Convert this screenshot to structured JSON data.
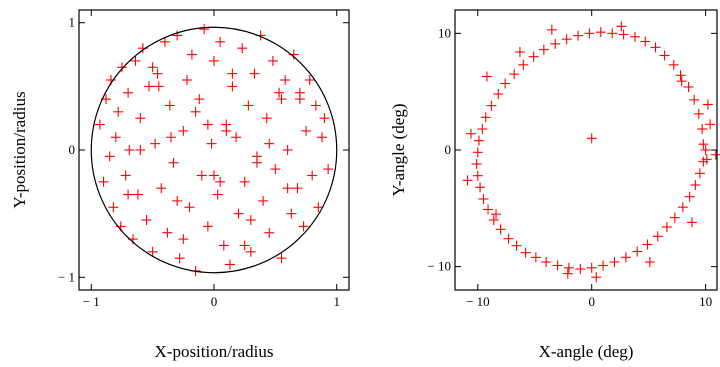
{
  "chart_data": [
    {
      "type": "scatter",
      "xlabel": "X-position/radius",
      "ylabel": "Y-position/radius",
      "xlim": [
        -1.1,
        1.1
      ],
      "ylim": [
        -1.1,
        1.1
      ],
      "xticks": [
        -1,
        0,
        1
      ],
      "xtick_labels": [
        "− 1",
        "0",
        "1"
      ],
      "yticks": [
        -1,
        0,
        1
      ],
      "ytick_labels": [
        "− 1",
        "0",
        "1"
      ],
      "grid": false,
      "marker": "+",
      "marker_color": "#ff0000",
      "boundary": {
        "shape": "circle",
        "radius": 1,
        "color": "#000000"
      },
      "series": [
        {
          "x": [
            -0.93,
            -0.9,
            -0.88,
            -0.85,
            -0.84,
            -0.82,
            -0.8,
            -0.78,
            -0.76,
            -0.75,
            -0.72,
            -0.7,
            -0.69,
            -0.66,
            -0.64,
            -0.62,
            -0.6,
            -0.58,
            -0.55,
            -0.53,
            -0.5,
            -0.48,
            -0.46,
            -0.43,
            -0.4,
            -0.38,
            -0.36,
            -0.33,
            -0.3,
            -0.28,
            -0.25,
            -0.22,
            -0.2,
            -0.18,
            -0.15,
            -0.12,
            -0.1,
            -0.08,
            -0.05,
            -0.02,
            0.0,
            0.03,
            0.05,
            0.08,
            0.1,
            0.13,
            0.15,
            0.18,
            0.2,
            0.23,
            0.25,
            0.28,
            0.3,
            0.33,
            0.35,
            0.38,
            0.4,
            0.43,
            0.45,
            0.48,
            0.5,
            0.53,
            0.55,
            0.58,
            0.6,
            0.63,
            0.65,
            0.68,
            0.7,
            0.73,
            0.75,
            0.78,
            0.8,
            0.83,
            0.85,
            0.88,
            0.9,
            0.93,
            -0.6,
            -0.45,
            -0.3,
            -0.15,
            0.0,
            0.15,
            0.3,
            0.45,
            0.6,
            -0.5,
            -0.25,
            0.1,
            0.35,
            0.55,
            -0.7,
            -0.05,
            0.25,
            0.7,
            -0.35,
            0.05
          ],
          "y": [
            0.2,
            -0.25,
            0.4,
            -0.05,
            0.55,
            -0.45,
            0.1,
            0.3,
            -0.6,
            0.65,
            -0.2,
            0.45,
            0.0,
            -0.7,
            0.7,
            -0.35,
            0.25,
            0.8,
            -0.55,
            0.5,
            -0.8,
            0.05,
            0.6,
            -0.3,
            0.85,
            -0.65,
            0.35,
            -0.1,
            0.9,
            -0.85,
            0.15,
            0.55,
            -0.45,
            0.75,
            -0.95,
            0.4,
            -0.2,
            0.95,
            -0.6,
            0.05,
            0.7,
            -0.35,
            0.85,
            -0.75,
            0.2,
            -0.9,
            0.5,
            0.1,
            -0.5,
            0.8,
            -0.25,
            0.35,
            -0.8,
            0.6,
            -0.05,
            0.9,
            -0.4,
            0.25,
            -0.65,
            0.7,
            -0.15,
            0.45,
            -0.85,
            0.55,
            0.0,
            -0.5,
            0.75,
            -0.3,
            0.4,
            -0.6,
            0.15,
            0.55,
            -0.2,
            0.35,
            -0.45,
            0.1,
            0.25,
            -0.15,
            0.0,
            0.5,
            -0.4,
            0.3,
            -0.2,
            0.6,
            -0.55,
            0.05,
            -0.3,
            0.65,
            -0.7,
            0.15,
            -0.1,
            0.4,
            -0.35,
            0.2,
            -0.75,
            0.45,
            0.1,
            -0.25
          ]
        }
      ]
    },
    {
      "type": "scatter",
      "xlabel": "X-angle (deg)",
      "ylabel": "Y-angle (deg)",
      "xlim": [
        -12,
        11
      ],
      "ylim": [
        -12,
        12
      ],
      "xticks": [
        -10,
        0,
        10
      ],
      "xtick_labels": [
        "− 10",
        "0",
        "10"
      ],
      "yticks": [
        -10,
        0,
        10
      ],
      "ytick_labels": [
        "− 10",
        "0",
        "10"
      ],
      "grid": false,
      "marker": "+",
      "marker_color": "#ff0000",
      "series": [
        {
          "x": [
            9.8,
            9.7,
            9.4,
            9.0,
            8.5,
            7.8,
            7.2,
            6.4,
            5.6,
            4.7,
            3.8,
            2.8,
            1.8,
            0.8,
            -0.2,
            -1.2,
            -2.2,
            -3.2,
            -4.2,
            -5.1,
            -6.0,
            -6.8,
            -7.6,
            -8.2,
            -8.8,
            -9.3,
            -9.6,
            -9.9,
            -10.0,
            -10.1,
            -10.0,
            -9.8,
            -9.5,
            -9.1,
            -8.6,
            -8.0,
            -7.3,
            -6.6,
            -5.8,
            -4.9,
            -4.0,
            -3.0,
            -2.0,
            -1.0,
            0.0,
            1.0,
            2.0,
            3.0,
            4.0,
            4.9,
            5.8,
            6.6,
            7.3,
            8.0,
            8.6,
            9.1,
            9.5,
            9.8,
            10.0,
            10.1,
            10.4,
            10.9,
            8.8,
            -10.6,
            -10.9,
            -9.2,
            0.4,
            -6.3,
            5.1,
            -3.5,
            2.6,
            -8.4,
            7.9,
            0.0,
            10.2,
            -2.1
          ],
          "y": [
            0.5,
            1.8,
            3.1,
            4.3,
            5.4,
            6.4,
            7.3,
            8.1,
            8.8,
            9.3,
            9.7,
            9.9,
            10.0,
            10.1,
            10.0,
            9.8,
            9.5,
            9.1,
            8.6,
            8.0,
            7.3,
            6.5,
            5.7,
            4.8,
            3.8,
            2.8,
            1.8,
            0.8,
            -0.2,
            -1.2,
            -2.2,
            -3.2,
            -4.2,
            -5.1,
            -6.0,
            -6.8,
            -7.6,
            -8.2,
            -8.8,
            -9.2,
            -9.6,
            -9.9,
            -10.1,
            -10.2,
            -10.1,
            -9.9,
            -9.6,
            -9.2,
            -8.7,
            -8.1,
            -7.4,
            -6.6,
            -5.8,
            -4.9,
            -4.0,
            -3.0,
            -2.0,
            -1.0,
            0.0,
            -0.8,
            2.2,
            -0.4,
            -6.2,
            1.4,
            -2.6,
            6.3,
            -10.9,
            8.4,
            -9.6,
            10.3,
            10.6,
            -5.5,
            5.9,
            1.0,
            3.9,
            -10.6
          ]
        }
      ]
    }
  ]
}
